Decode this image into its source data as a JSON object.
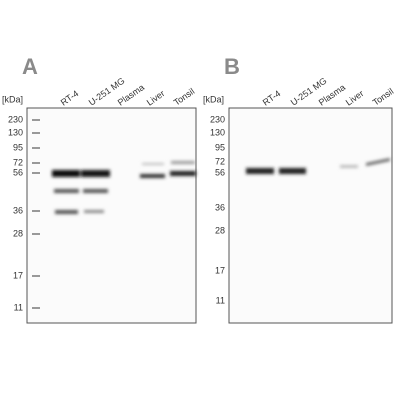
{
  "panels": [
    {
      "letter": "A",
      "unit": "[kDa]",
      "lanes": [
        "RT-4",
        "U-251 MG",
        "Plasma",
        "Liver",
        "Tonsil"
      ],
      "markers": [
        "230",
        "130",
        "95",
        "72",
        "56",
        "36",
        "28",
        "17",
        "11"
      ]
    },
    {
      "letter": "B",
      "unit": "[kDa]",
      "lanes": [
        "RT-4",
        "U-251 MG",
        "Plasma",
        "Liver",
        "Tonsil"
      ],
      "markers": [
        "230",
        "130",
        "95",
        "72",
        "56",
        "36",
        "28",
        "17",
        "11"
      ]
    }
  ]
}
